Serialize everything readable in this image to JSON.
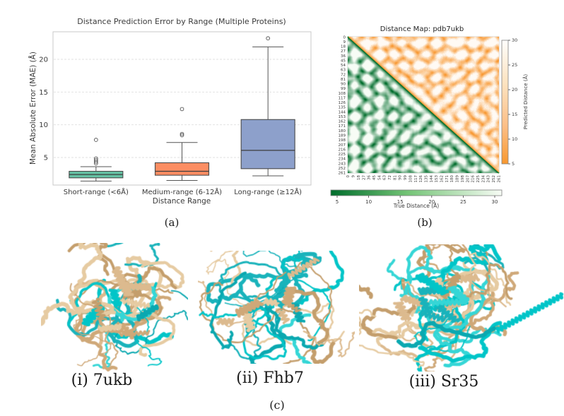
{
  "figure": {
    "panels": {
      "a": {
        "caption": "(a)"
      },
      "b": {
        "caption": "(b)"
      },
      "c": {
        "caption": "(c)",
        "structures": [
          {
            "label": "(i) 7ukb"
          },
          {
            "label": "(ii) Fhb7"
          },
          {
            "label": "(iii) Sr35"
          }
        ],
        "ribbon_colors": {
          "experimental": "#d7b88c",
          "predicted": "#00c5c8"
        }
      }
    }
  },
  "chart_data": [
    {
      "type": "box",
      "title": "Distance Prediction Error by Range (Multiple Proteins)",
      "xlabel": "Distance Range",
      "ylabel": "Mean Absolute Error (MAE) (Å)",
      "ylim": [
        0.8,
        24.2
      ],
      "yticks": [
        5,
        10,
        15,
        20
      ],
      "grid": "horizontal-dashed",
      "categories": [
        "Short-range (<6Å)",
        "Medium-range (6-12Å)",
        "Long-range (≥12Å)"
      ],
      "boxes": [
        {
          "label": "Short-range (<6Å)",
          "whislo": 1.4,
          "q1": 1.9,
          "med": 2.4,
          "q3": 2.9,
          "whishi": 3.6,
          "fliers": [
            4.1,
            4.35,
            4.6,
            4.85,
            7.7
          ],
          "color": "#66c2a5"
        },
        {
          "label": "Medium-range (6-12Å)",
          "whislo": 1.5,
          "q1": 2.3,
          "med": 2.9,
          "q3": 4.2,
          "whishi": 7.3,
          "fliers": [
            8.4,
            8.6,
            12.4
          ],
          "color": "#fc8d62"
        },
        {
          "label": "Long-range (≥12Å)",
          "whislo": 2.2,
          "q1": 3.3,
          "med": 6.1,
          "q3": 10.8,
          "whishi": 21.9,
          "fliers": [
            23.2
          ],
          "color": "#8da0cb"
        }
      ]
    },
    {
      "type": "heatmap",
      "title": "Distance Map: pdb7ukb",
      "n_residues": 262,
      "axis_ticks": [
        0,
        9,
        18,
        27,
        36,
        45,
        54,
        63,
        72,
        81,
        90,
        99,
        108,
        117,
        126,
        135,
        144,
        153,
        162,
        171,
        180,
        189,
        198,
        207,
        216,
        225,
        234,
        243,
        252,
        261
      ],
      "diagonal_color": "#2fbf2f",
      "lower_triangle": {
        "quantity": "True Distance (Å)",
        "colormap": "green (dark=near) to white (far)",
        "range": [
          5,
          30
        ],
        "colorbar": {
          "orientation": "horizontal",
          "position": "bottom",
          "ticks": [
            5,
            10,
            15,
            20,
            25,
            30
          ]
        }
      },
      "upper_triangle": {
        "quantity": "Predicted Distance (Å)",
        "colormap": "orange (dark=near) to white (far)",
        "range": [
          5,
          30
        ],
        "colorbar": {
          "orientation": "vertical",
          "position": "right",
          "ticks": [
            5,
            10,
            15,
            20,
            25,
            30
          ]
        }
      }
    }
  ]
}
